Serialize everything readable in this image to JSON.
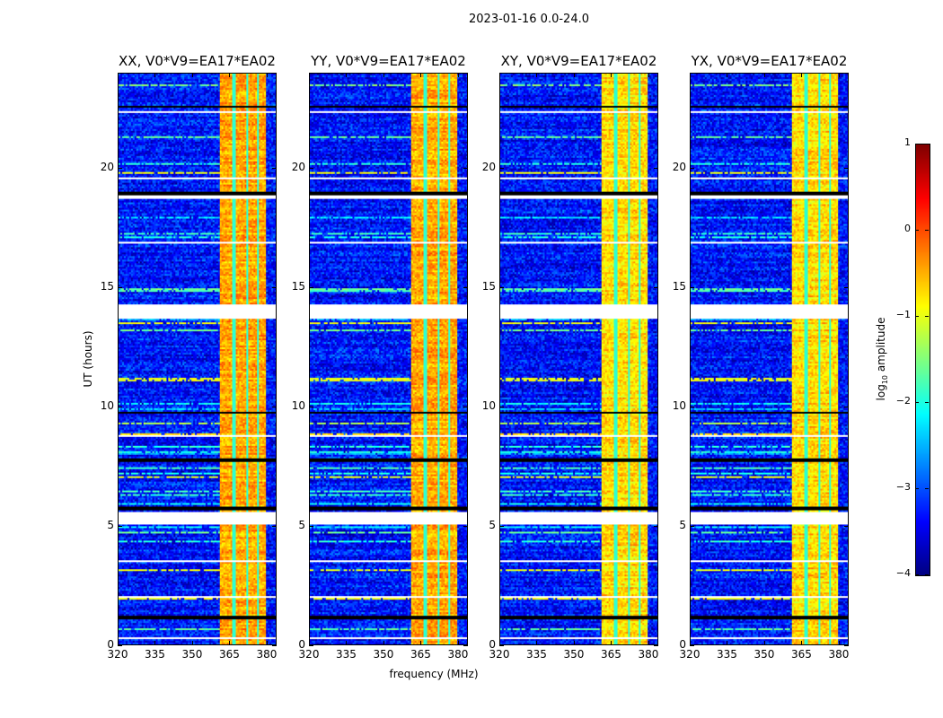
{
  "chart_data": {
    "type": "heatmap",
    "title": "2023-01-16 0.0-24.0",
    "panels": [
      {
        "title": "XX, V0*V9=EA17*EA02"
      },
      {
        "title": "YY, V0*V9=EA17*EA02"
      },
      {
        "title": "XY, V0*V9=EA17*EA02"
      },
      {
        "title": "YX, V0*V9=EA17*EA02"
      }
    ],
    "xlabel": "frequency (MHz)",
    "ylabel": "UT (hours)",
    "xlim": [
      320,
      384
    ],
    "ylim": [
      0,
      24
    ],
    "xticks": [
      "320",
      "335",
      "350",
      "365",
      "380"
    ],
    "xtick_values": [
      320,
      335,
      350,
      365,
      380
    ],
    "yticks": [
      "0",
      "5",
      "10",
      "15",
      "20"
    ],
    "ytick_values": [
      0,
      5,
      10,
      15,
      20
    ],
    "background_level": -3.3,
    "bright_band_mhz": [
      361,
      380
    ],
    "bright_band_level": -0.6,
    "flagged_white_hours": [
      [
        5.1,
        5.6
      ],
      [
        13.7,
        14.3
      ],
      [
        18.8,
        18.95
      ],
      [
        0.3,
        0.35
      ],
      [
        2.0,
        2.05
      ],
      [
        3.5,
        3.6
      ],
      [
        6.1,
        6.15
      ],
      [
        8.8,
        8.85
      ],
      [
        11.3,
        11.35
      ],
      [
        16.9,
        16.95
      ],
      [
        19.6,
        19.65
      ],
      [
        22.4,
        22.45
      ]
    ],
    "flagged_black_hours": [
      [
        5.65,
        5.85
      ],
      [
        1.1,
        1.25
      ],
      [
        7.7,
        7.85
      ],
      [
        9.75,
        9.8
      ],
      [
        13.55,
        13.6
      ],
      [
        18.95,
        19.1
      ],
      [
        21.0,
        21.05
      ],
      [
        22.6,
        22.7
      ]
    ],
    "colorbar": {
      "label_main": "log",
      "label_sub": "10",
      "label_rest": " amplitude",
      "ticks": [
        "1",
        "0",
        "−1",
        "−2",
        "−3",
        "−4"
      ],
      "tick_values": [
        1,
        0,
        -1,
        -2,
        -3,
        -4
      ],
      "range": [
        -4,
        1
      ],
      "colormap": "jet"
    }
  }
}
